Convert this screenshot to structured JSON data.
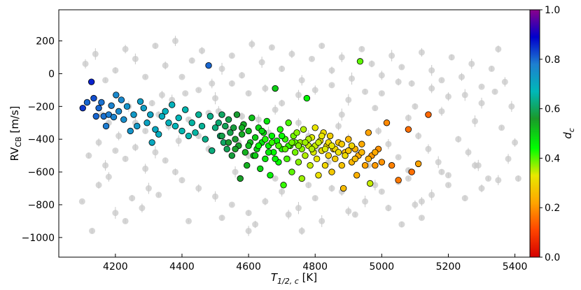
{
  "chart_data": {
    "type": "scatter",
    "title": "",
    "xlim": [
      4030,
      5445
    ],
    "ylim": [
      -1120,
      390
    ],
    "x_ticks": [
      4200,
      4400,
      4600,
      4800,
      5000,
      5200,
      5400
    ],
    "y_ticks": [
      200,
      0,
      -200,
      -400,
      -600,
      -800,
      -1000
    ],
    "x_tick_labels": [
      "4200",
      "4400",
      "4600",
      "4800",
      "5000",
      "5200",
      "5400"
    ],
    "y_tick_labels": [
      "200",
      "0",
      "−200",
      "−400",
      "−600",
      "−800",
      "−1000"
    ],
    "xlabel": "T",
    "xlabel_sub": "1/2, c",
    "xlabel_unit": " [K]",
    "ylabel": "RV",
    "ylabel_sub": "CB",
    "ylabel_unit": " [m/s]",
    "colorbar": {
      "label": "d",
      "label_sub": "c",
      "range": [
        0.0,
        1.0
      ],
      "ticks": [
        0.0,
        0.2,
        0.4,
        0.6,
        0.8,
        1.0
      ],
      "tick_labels": [
        "0.0",
        "0.2",
        "0.4",
        "0.6",
        "0.8",
        "1.0"
      ],
      "colormap": [
        "#d40000",
        "#ff4500",
        "#ffa500",
        "#e8e800",
        "#00ff00",
        "#1a9a2a",
        "#00b8b8",
        "#1e7fd0",
        "#0000cc",
        "#8b008b"
      ]
    },
    "background_color": "#c8c8c8",
    "background_points": [
      [
        4100,
        -780
      ],
      [
        4130,
        -960
      ],
      [
        4150,
        -680
      ],
      [
        4180,
        -630
      ],
      [
        4200,
        -850
      ],
      [
        4230,
        -900
      ],
      [
        4250,
        -760
      ],
      [
        4280,
        -820
      ],
      [
        4300,
        -700
      ],
      [
        4330,
        -740
      ],
      [
        4120,
        -500
      ],
      [
        4150,
        -420
      ],
      [
        4170,
        -560
      ],
      [
        4200,
        -470
      ],
      [
        4230,
        -520
      ],
      [
        4260,
        -450
      ],
      [
        4290,
        -580
      ],
      [
        4320,
        -480
      ],
      [
        4350,
        -530
      ],
      [
        4380,
        -600
      ],
      [
        4110,
        60
      ],
      [
        4140,
        120
      ],
      [
        4170,
        -40
      ],
      [
        4200,
        20
      ],
      [
        4230,
        150
      ],
      [
        4260,
        90
      ],
      [
        4290,
        -20
      ],
      [
        4320,
        170
      ],
      [
        4350,
        50
      ],
      [
        4380,
        200
      ],
      [
        4400,
        -20
      ],
      [
        4430,
        80
      ],
      [
        4460,
        140
      ],
      [
        4490,
        -60
      ],
      [
        4520,
        30
      ],
      [
        4550,
        110
      ],
      [
        4580,
        -10
      ],
      [
        4610,
        180
      ],
      [
        4640,
        70
      ],
      [
        4670,
        160
      ],
      [
        4700,
        30
      ],
      [
        4730,
        120
      ],
      [
        4760,
        -40
      ],
      [
        4790,
        90
      ],
      [
        4820,
        170
      ],
      [
        4850,
        20
      ],
      [
        4880,
        100
      ],
      [
        4910,
        -30
      ],
      [
        4940,
        150
      ],
      [
        4970,
        60
      ],
      [
        5000,
        -10
      ],
      [
        5030,
        110
      ],
      [
        5060,
        40
      ],
      [
        5090,
        -60
      ],
      [
        5120,
        130
      ],
      [
        5150,
        20
      ],
      [
        5180,
        -40
      ],
      [
        5210,
        100
      ],
      [
        5240,
        -20
      ],
      [
        5270,
        60
      ],
      [
        5300,
        -80
      ],
      [
        5330,
        30
      ],
      [
        5350,
        150
      ],
      [
        5370,
        -50
      ],
      [
        4260,
        -300
      ],
      [
        4290,
        -350
      ],
      [
        4330,
        -250
      ],
      [
        4360,
        -320
      ],
      [
        4390,
        -410
      ],
      [
        4420,
        -280
      ],
      [
        4450,
        -380
      ],
      [
        4480,
        -460
      ],
      [
        4510,
        -230
      ],
      [
        4540,
        -340
      ],
      [
        4570,
        -420
      ],
      [
        4600,
        -500
      ],
      [
        4630,
        -280
      ],
      [
        4660,
        -360
      ],
      [
        4690,
        -440
      ],
      [
        4720,
        -520
      ],
      [
        4750,
        -300
      ],
      [
        4780,
        -380
      ],
      [
        4810,
        -460
      ],
      [
        4840,
        -540
      ],
      [
        4870,
        -320
      ],
      [
        4900,
        -400
      ],
      [
        4930,
        -480
      ],
      [
        4960,
        -560
      ],
      [
        4990,
        -350
      ],
      [
        5020,
        -430
      ],
      [
        5050,
        -510
      ],
      [
        5080,
        -590
      ],
      [
        5110,
        -380
      ],
      [
        5140,
        -460
      ],
      [
        5170,
        -540
      ],
      [
        5200,
        -620
      ],
      [
        5230,
        -400
      ],
      [
        5260,
        -480
      ],
      [
        5290,
        -560
      ],
      [
        5320,
        -640
      ],
      [
        4400,
        -650
      ],
      [
        4450,
        -700
      ],
      [
        4500,
        -750
      ],
      [
        4550,
        -800
      ],
      [
        4600,
        -850
      ],
      [
        4650,
        -780
      ],
      [
        4700,
        -720
      ],
      [
        4750,
        -820
      ],
      [
        4800,
        -760
      ],
      [
        4850,
        -700
      ],
      [
        4900,
        -840
      ],
      [
        4950,
        -780
      ],
      [
        5000,
        -720
      ],
      [
        5050,
        -660
      ],
      [
        5100,
        -800
      ],
      [
        5150,
        -740
      ],
      [
        5200,
        -680
      ],
      [
        5250,
        -760
      ],
      [
        5300,
        -700
      ],
      [
        5350,
        -650
      ],
      [
        4420,
        -900
      ],
      [
        4520,
        -880
      ],
      [
        4620,
        -920
      ],
      [
        4720,
        -860
      ],
      [
        4820,
        -900
      ],
      [
        4920,
        -860
      ],
      [
        5020,
        -820
      ],
      [
        5120,
        -780
      ],
      [
        4560,
        -600
      ],
      [
        4680,
        -640
      ],
      [
        4780,
        -680
      ],
      [
        4880,
        -720
      ],
      [
        4980,
        -680
      ],
      [
        5080,
        -640
      ],
      [
        5180,
        -600
      ],
      [
        5280,
        -560
      ],
      [
        5380,
        -520
      ],
      [
        4500,
        -150
      ],
      [
        4600,
        -120
      ],
      [
        4700,
        -180
      ],
      [
        4800,
        -100
      ],
      [
        4900,
        -160
      ],
      [
        5000,
        -120
      ],
      [
        5100,
        -200
      ],
      [
        5200,
        -140
      ],
      [
        5300,
        -180
      ],
      [
        4450,
        -100
      ],
      [
        4550,
        -60
      ],
      [
        4650,
        -90
      ],
      [
        4750,
        -130
      ],
      [
        4850,
        -70
      ],
      [
        4950,
        -110
      ],
      [
        5050,
        -50
      ],
      [
        5150,
        -90
      ],
      [
        5250,
        -130
      ],
      [
        5340,
        -110
      ],
      [
        4180,
        -300
      ],
      [
        4210,
        -380
      ],
      [
        4240,
        -200
      ],
      [
        4160,
        -250
      ],
      [
        4310,
        -180
      ],
      [
        4340,
        -130
      ],
      [
        4370,
        -160
      ],
      [
        4410,
        -120
      ],
      [
        4480,
        -240
      ],
      [
        4580,
        -260
      ],
      [
        4680,
        -220
      ],
      [
        4880,
        -250
      ],
      [
        4980,
        -210
      ],
      [
        5080,
        -270
      ],
      [
        5180,
        -230
      ],
      [
        5280,
        -290
      ],
      [
        5360,
        -330
      ],
      [
        5410,
        -640
      ],
      [
        5400,
        -420
      ],
      [
        5390,
        -200
      ],
      [
        5120,
        -880
      ],
      [
        5060,
        -920
      ],
      [
        4760,
        -960
      ],
      [
        4600,
        -960
      ]
    ],
    "colored_points": [
      [
        4102,
        -210,
        0.84
      ],
      [
        4115,
        -175,
        0.8
      ],
      [
        4128,
        -50,
        0.86
      ],
      [
        4135,
        -150,
        0.82
      ],
      [
        4142,
        -260,
        0.8
      ],
      [
        4150,
        -210,
        0.8
      ],
      [
        4158,
        -175,
        0.79
      ],
      [
        4165,
        -260,
        0.79
      ],
      [
        4172,
        -320,
        0.78
      ],
      [
        4180,
        -250,
        0.78
      ],
      [
        4188,
        -195,
        0.77
      ],
      [
        4195,
        -265,
        0.77
      ],
      [
        4202,
        -130,
        0.76
      ],
      [
        4210,
        -230,
        0.76
      ],
      [
        4218,
        -160,
        0.76
      ],
      [
        4225,
        -280,
        0.75
      ],
      [
        4235,
        -200,
        0.74
      ],
      [
        4245,
        -350,
        0.74
      ],
      [
        4255,
        -250,
        0.73
      ],
      [
        4265,
        -320,
        0.73
      ],
      [
        4275,
        -170,
        0.72
      ],
      [
        4285,
        -210,
        0.72
      ],
      [
        4295,
        -300,
        0.71
      ],
      [
        4305,
        -250,
        0.71
      ],
      [
        4310,
        -420,
        0.7
      ],
      [
        4320,
        -340,
        0.7
      ],
      [
        4330,
        -370,
        0.69
      ],
      [
        4340,
        -260,
        0.69
      ],
      [
        4350,
        -230,
        0.68
      ],
      [
        4360,
        -300,
        0.68
      ],
      [
        4370,
        -190,
        0.68
      ],
      [
        4380,
        -320,
        0.67
      ],
      [
        4390,
        -270,
        0.67
      ],
      [
        4400,
        -350,
        0.66
      ],
      [
        4410,
        -220,
        0.66
      ],
      [
        4420,
        -380,
        0.66
      ],
      [
        4430,
        -300,
        0.65
      ],
      [
        4440,
        -360,
        0.65
      ],
      [
        4450,
        -250,
        0.64
      ],
      [
        4460,
        -320,
        0.64
      ],
      [
        4470,
        -400,
        0.63
      ],
      [
        4480,
        50,
        0.8
      ],
      [
        4485,
        -260,
        0.63
      ],
      [
        4490,
        -470,
        0.62
      ],
      [
        4500,
        -330,
        0.62
      ],
      [
        4510,
        -300,
        0.61
      ],
      [
        4515,
        -380,
        0.61
      ],
      [
        4520,
        -250,
        0.6
      ],
      [
        4525,
        -420,
        0.6
      ],
      [
        4530,
        -320,
        0.59
      ],
      [
        4535,
        -460,
        0.59
      ],
      [
        4540,
        -280,
        0.58
      ],
      [
        4545,
        -360,
        0.58
      ],
      [
        4550,
        -500,
        0.57
      ],
      [
        4555,
        -330,
        0.57
      ],
      [
        4560,
        -400,
        0.56
      ],
      [
        4565,
        -250,
        0.56
      ],
      [
        4570,
        -440,
        0.55
      ],
      [
        4575,
        -640,
        0.55
      ],
      [
        4580,
        -370,
        0.54
      ],
      [
        4585,
        -310,
        0.54
      ],
      [
        4590,
        -480,
        0.53
      ],
      [
        4595,
        -560,
        0.53
      ],
      [
        4600,
        -350,
        0.52
      ],
      [
        4605,
        -420,
        0.52
      ],
      [
        4610,
        -270,
        0.51
      ],
      [
        4615,
        -500,
        0.51
      ],
      [
        4620,
        -390,
        0.5
      ],
      [
        4625,
        -460,
        0.5
      ],
      [
        4630,
        -330,
        0.49
      ],
      [
        4635,
        -580,
        0.49
      ],
      [
        4640,
        -420,
        0.48
      ],
      [
        4645,
        -360,
        0.48
      ],
      [
        4650,
        -520,
        0.47
      ],
      [
        4655,
        -290,
        0.47
      ],
      [
        4660,
        -440,
        0.46
      ],
      [
        4665,
        -620,
        0.46
      ],
      [
        4670,
        -380,
        0.45
      ],
      [
        4675,
        -480,
        0.45
      ],
      [
        4680,
        -90,
        0.5
      ],
      [
        4685,
        -410,
        0.44
      ],
      [
        4690,
        -540,
        0.44
      ],
      [
        4695,
        -340,
        0.43
      ],
      [
        4700,
        -460,
        0.43
      ],
      [
        4705,
        -680,
        0.42
      ],
      [
        4710,
        -400,
        0.42
      ],
      [
        4715,
        -520,
        0.41
      ],
      [
        4720,
        -300,
        0.41
      ],
      [
        4725,
        -440,
        0.4
      ],
      [
        4730,
        -600,
        0.4
      ],
      [
        4735,
        -380,
        0.39
      ],
      [
        4740,
        -480,
        0.39
      ],
      [
        4745,
        -360,
        0.38
      ],
      [
        4750,
        -540,
        0.38
      ],
      [
        4755,
        -420,
        0.37
      ],
      [
        4760,
        -640,
        0.37
      ],
      [
        4765,
        -340,
        0.36
      ],
      [
        4770,
        -500,
        0.36
      ],
      [
        4775,
        -150,
        0.45
      ],
      [
        4780,
        -440,
        0.35
      ],
      [
        4785,
        -560,
        0.35
      ],
      [
        4790,
        -390,
        0.34
      ],
      [
        4795,
        -480,
        0.34
      ],
      [
        4800,
        -330,
        0.33
      ],
      [
        4805,
        -520,
        0.33
      ],
      [
        4810,
        -620,
        0.32
      ],
      [
        4815,
        -410,
        0.32
      ],
      [
        4820,
        -470,
        0.31
      ],
      [
        4825,
        -360,
        0.31
      ],
      [
        4830,
        -560,
        0.3
      ],
      [
        4835,
        -440,
        0.3
      ],
      [
        4840,
        -500,
        0.29
      ],
      [
        4845,
        -380,
        0.29
      ],
      [
        4850,
        -600,
        0.28
      ],
      [
        4855,
        -460,
        0.28
      ],
      [
        4860,
        -520,
        0.28
      ],
      [
        4870,
        -420,
        0.27
      ],
      [
        4880,
        -560,
        0.27
      ],
      [
        4885,
        -700,
        0.26
      ],
      [
        4890,
        -480,
        0.26
      ],
      [
        4900,
        -400,
        0.25
      ],
      [
        4910,
        -540,
        0.25
      ],
      [
        4920,
        -460,
        0.24
      ],
      [
        4925,
        -620,
        0.24
      ],
      [
        4930,
        -500,
        0.23
      ],
      [
        4935,
        75,
        0.4
      ],
      [
        4940,
        -430,
        0.23
      ],
      [
        4950,
        -560,
        0.22
      ],
      [
        4960,
        -360,
        0.22
      ],
      [
        4965,
        -670,
        0.35
      ],
      [
        4970,
        -500,
        0.21
      ],
      [
        4980,
        -560,
        0.21
      ],
      [
        4990,
        -460,
        0.2
      ],
      [
        5000,
        -540,
        0.2
      ],
      [
        5015,
        -300,
        0.19
      ],
      [
        5030,
        -560,
        0.18
      ],
      [
        5050,
        -650,
        0.17
      ],
      [
        5080,
        -340,
        0.16
      ],
      [
        5090,
        -600,
        0.16
      ],
      [
        5110,
        -550,
        0.22
      ],
      [
        5140,
        -250,
        0.15
      ],
      [
        4520,
        -380,
        0.58
      ],
      [
        4540,
        -420,
        0.56
      ],
      [
        4560,
        -460,
        0.55
      ],
      [
        4580,
        -330,
        0.53
      ],
      [
        4600,
        -440,
        0.52
      ],
      [
        4620,
        -500,
        0.5
      ],
      [
        4640,
        -350,
        0.49
      ],
      [
        4660,
        -480,
        0.47
      ],
      [
        4680,
        -520,
        0.45
      ],
      [
        4700,
        -380,
        0.44
      ],
      [
        4720,
        -440,
        0.42
      ],
      [
        4740,
        -420,
        0.4
      ],
      [
        4760,
        -460,
        0.38
      ],
      [
        4780,
        -400,
        0.36
      ],
      [
        4800,
        -440,
        0.35
      ],
      [
        4820,
        -380,
        0.33
      ],
      [
        4840,
        -420,
        0.31
      ],
      [
        4860,
        -460,
        0.3
      ],
      [
        4880,
        -430,
        0.28
      ],
      [
        4900,
        -470,
        0.27
      ],
      [
        4920,
        -520,
        0.26
      ],
      [
        4940,
        -480,
        0.25
      ],
      [
        4960,
        -520,
        0.24
      ],
      [
        4980,
        -480,
        0.23
      ],
      [
        4630,
        -440,
        0.44
      ],
      [
        4650,
        -400,
        0.43
      ],
      [
        4670,
        -420,
        0.42
      ],
      [
        4690,
        -440,
        0.41
      ],
      [
        4710,
        -460,
        0.4
      ],
      [
        4730,
        -420,
        0.39
      ],
      [
        4750,
        -440,
        0.38
      ],
      [
        4770,
        -420,
        0.37
      ],
      [
        4790,
        -460,
        0.36
      ],
      [
        4810,
        -420,
        0.35
      ],
      [
        4830,
        -460,
        0.34
      ],
      [
        4850,
        -440,
        0.33
      ],
      [
        4870,
        -480,
        0.32
      ],
      [
        4890,
        -500,
        0.31
      ],
      [
        4910,
        -440,
        0.3
      ]
    ]
  }
}
